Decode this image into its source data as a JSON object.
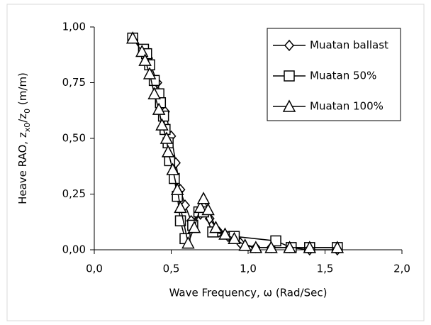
{
  "chart_data": {
    "type": "line",
    "x_label": "Wave Frequency, ω (Rad/Sec)",
    "y_label": [
      "Heave RAO, z",
      "x0",
      "/z",
      "0",
      " (m/m)"
    ],
    "xlim": [
      0,
      2
    ],
    "ylim": [
      0,
      1
    ],
    "xticks": [
      {
        "value": 0,
        "label": "0,0"
      },
      {
        "value": 0.5,
        "label": "0,5"
      },
      {
        "value": 1,
        "label": "1,0"
      },
      {
        "value": 1.5,
        "label": "1,5"
      },
      {
        "value": 2,
        "label": "2,0"
      }
    ],
    "yticks": [
      {
        "value": 0,
        "label": "0,00"
      },
      {
        "value": 0.25,
        "label": "0,25"
      },
      {
        "value": 0.5,
        "label": "0,50"
      },
      {
        "value": 0.75,
        "label": "0,75"
      },
      {
        "value": 1,
        "label": "1,00"
      }
    ],
    "grid": false,
    "legend": "upper right",
    "series": [
      {
        "name": "Muatan ballast",
        "color": "#000000",
        "marker": "diamond",
        "x": [
          0.25,
          0.35,
          0.41,
          0.46,
          0.5,
          0.53,
          0.56,
          0.59,
          0.63,
          0.69,
          0.75,
          0.81,
          0.87,
          0.95,
          1.05,
          1.15,
          1.27,
          1.4,
          1.58
        ],
        "values": [
          0.95,
          0.86,
          0.75,
          0.62,
          0.51,
          0.39,
          0.27,
          0.2,
          0.13,
          0.16,
          0.14,
          0.08,
          0.06,
          0.03,
          0.01,
          0.01,
          0.01,
          0.0,
          0.0
        ]
      },
      {
        "name": "Muatan 50%",
        "color": "#000000",
        "marker": "square",
        "x": [
          0.25,
          0.32,
          0.34,
          0.36,
          0.39,
          0.42,
          0.43,
          0.45,
          0.46,
          0.48,
          0.49,
          0.52,
          0.54,
          0.56,
          0.59,
          0.64,
          0.68,
          0.71,
          0.77,
          0.91,
          1.18,
          1.28,
          1.4,
          1.58
        ],
        "values": [
          0.95,
          0.9,
          0.88,
          0.83,
          0.76,
          0.7,
          0.66,
          0.6,
          0.54,
          0.48,
          0.4,
          0.32,
          0.24,
          0.13,
          0.05,
          0.11,
          0.17,
          0.17,
          0.08,
          0.06,
          0.04,
          0.01,
          0.01,
          0.01
        ]
      },
      {
        "name": "Muatan 100%",
        "color": "#000000",
        "marker": "triangle",
        "x": [
          0.25,
          0.31,
          0.33,
          0.36,
          0.39,
          0.42,
          0.44,
          0.47,
          0.48,
          0.51,
          0.54,
          0.56,
          0.61,
          0.65,
          0.69,
          0.71,
          0.74,
          0.79,
          0.85,
          0.91,
          0.98,
          1.05,
          1.15,
          1.27,
          1.4,
          1.58
        ],
        "values": [
          0.95,
          0.89,
          0.85,
          0.79,
          0.7,
          0.63,
          0.56,
          0.5,
          0.44,
          0.36,
          0.27,
          0.19,
          0.03,
          0.1,
          0.19,
          0.23,
          0.18,
          0.1,
          0.07,
          0.05,
          0.02,
          0.01,
          0.01,
          0.01,
          0.01,
          0.01
        ]
      }
    ]
  }
}
